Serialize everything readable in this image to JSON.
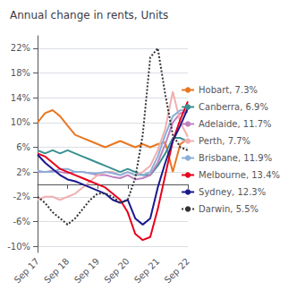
{
  "chart_data": {
    "type": "line",
    "title": "Annual change in rents, Units",
    "categories": [
      "Sep 17",
      null,
      null,
      null,
      "Sep 18",
      null,
      null,
      null,
      "Sep 19",
      null,
      null,
      null,
      "Sep 20",
      null,
      null,
      null,
      "Sep 21",
      null,
      null,
      null,
      "Sep 22"
    ],
    "ylim": [
      -11,
      24
    ],
    "yticks": [
      {
        "value": -10,
        "label": "-10%"
      },
      {
        "value": -6,
        "label": "-6%"
      },
      {
        "value": -2,
        "label": "-2%"
      },
      {
        "value": 2,
        "label": "2%"
      },
      {
        "value": 6,
        "label": "6%"
      },
      {
        "value": 10,
        "label": "10%"
      },
      {
        "value": 14,
        "label": "14%"
      },
      {
        "value": 18,
        "label": "18%"
      },
      {
        "value": 22,
        "label": "22%"
      }
    ],
    "grid": true,
    "legend": "right",
    "series": [
      {
        "name": "Hobart, 7.3%",
        "color": "#e87722",
        "line_style": "solid",
        "values": [
          10.0,
          11.5,
          12.0,
          11.0,
          9.5,
          8.0,
          7.5,
          7.0,
          6.5,
          6.0,
          6.5,
          7.0,
          6.5,
          6.0,
          6.5,
          6.0,
          6.5,
          6.8,
          2.0,
          6.5,
          7.3
        ]
      },
      {
        "name": "Canberra, 6.9%",
        "color": "#3a9090",
        "line_style": "solid",
        "values": [
          5.5,
          5.0,
          5.5,
          5.0,
          5.5,
          5.0,
          4.5,
          4.0,
          3.5,
          3.0,
          2.5,
          2.0,
          2.5,
          2.0,
          1.5,
          1.5,
          3.0,
          5.0,
          7.5,
          7.5,
          6.9
        ]
      },
      {
        "name": "Adelaide, 11.7%",
        "color": "#c080c0",
        "line_style": "solid",
        "values": [
          2.0,
          2.0,
          2.2,
          2.0,
          1.8,
          2.0,
          2.0,
          1.8,
          1.5,
          1.5,
          1.2,
          1.0,
          1.5,
          0.8,
          1.0,
          1.5,
          3.5,
          6.5,
          10.0,
          11.5,
          11.7
        ]
      },
      {
        "name": "Perth, 7.7%",
        "color": "#f0b0b0",
        "line_style": "solid",
        "values": [
          -2.5,
          -2.0,
          -2.0,
          -2.5,
          -2.0,
          -1.5,
          -0.5,
          0.5,
          1.5,
          2.0,
          2.0,
          1.5,
          2.0,
          1.5,
          2.0,
          3.0,
          5.5,
          9.0,
          15.0,
          10.0,
          7.7
        ]
      },
      {
        "name": "Brisbane, 11.9%",
        "color": "#8ab0d8",
        "line_style": "solid",
        "values": [
          2.2,
          2.0,
          2.0,
          2.5,
          2.5,
          2.0,
          2.0,
          1.8,
          1.8,
          2.0,
          1.8,
          1.5,
          2.0,
          1.5,
          1.5,
          2.0,
          4.5,
          8.0,
          11.0,
          12.0,
          11.9
        ]
      },
      {
        "name": "Melbourne, 13.4%",
        "color": "#e8001c",
        "line_style": "solid",
        "values": [
          5.0,
          4.5,
          3.5,
          2.5,
          2.0,
          1.5,
          1.0,
          0.5,
          0.0,
          -0.5,
          -1.5,
          -2.5,
          -4.5,
          -8.0,
          -9.0,
          -8.5,
          -4.0,
          1.5,
          7.0,
          10.5,
          13.4
        ]
      },
      {
        "name": "Sydney, 12.3%",
        "color": "#1a1a8e",
        "line_style": "solid",
        "values": [
          4.8,
          3.5,
          2.5,
          1.5,
          0.8,
          0.5,
          0.0,
          -0.5,
          -1.0,
          -1.5,
          -2.5,
          -3.0,
          -2.5,
          -5.5,
          -6.5,
          -5.5,
          -0.5,
          3.5,
          7.0,
          9.5,
          12.3
        ]
      },
      {
        "name": "Darwin, 5.5%",
        "color": "#333333",
        "line_style": "dotted",
        "values": [
          -2.0,
          -3.0,
          -4.5,
          -5.5,
          -6.5,
          -5.5,
          -4.0,
          -2.5,
          -1.5,
          -1.5,
          -2.0,
          -3.0,
          -2.5,
          1.0,
          8.0,
          20.5,
          22.0,
          14.5,
          8.0,
          6.0,
          5.5
        ]
      }
    ]
  }
}
